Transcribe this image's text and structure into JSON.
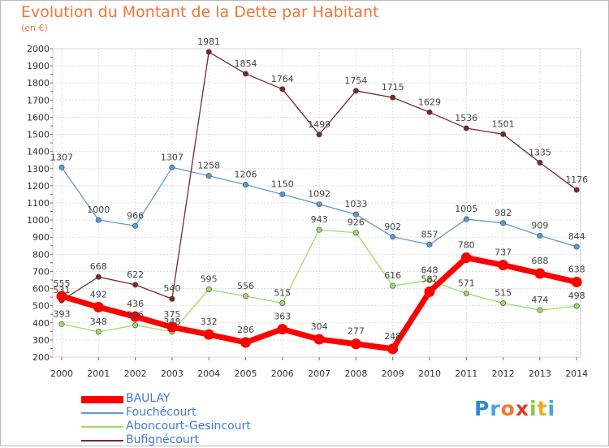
{
  "title": "Evolution du Montant de la Dette par Habitant",
  "subtitle": "(en €)",
  "logo": "Proxiti",
  "chart_data": {
    "type": "line",
    "title": "Evolution du Montant de la Dette par Habitant",
    "subtitle": "(en €)",
    "xlabel": "",
    "ylabel": "",
    "x": [
      "2000",
      "2001",
      "2002",
      "2003",
      "2004",
      "2005",
      "2006",
      "2007",
      "2008",
      "2009",
      "2010",
      "2011",
      "2012",
      "2013",
      "2014"
    ],
    "ylim": [
      200,
      2000
    ],
    "yticks": [
      200,
      300,
      400,
      500,
      600,
      700,
      800,
      900,
      1000,
      1100,
      1200,
      1300,
      1400,
      1500,
      1600,
      1700,
      1800,
      1900,
      2000
    ],
    "grid": true,
    "legend": "bottom-left",
    "series": [
      {
        "name": "BAULAY",
        "color": "#ff0000",
        "values": [
          555,
          492,
          436,
          375,
          332,
          286,
          363,
          304,
          277,
          248,
          582,
          780,
          737,
          688,
          638
        ],
        "labels": [
          "555",
          "492",
          "436",
          "375",
          "332",
          "286",
          "363",
          "304",
          "277",
          "248",
          "582",
          "780",
          "737",
          "688",
          "638"
        ]
      },
      {
        "name": "Fouchécourt",
        "color": "#5b9bd5",
        "values": [
          1307,
          1000,
          966,
          1307,
          1258,
          1206,
          1150,
          1092,
          1033,
          902,
          857,
          1005,
          982,
          909,
          844
        ],
        "labels": [
          "1307",
          "1000",
          "966",
          "1307",
          "1258",
          "1206",
          "1150",
          "1092",
          "1033",
          "902",
          "857",
          "1005",
          "982",
          "909",
          "844"
        ]
      },
      {
        "name": "Aboncourt-Gesincourt",
        "color": "#99dd66",
        "values": [
          393,
          348,
          386,
          348,
          595,
          556,
          515,
          943,
          926,
          616,
          648,
          571,
          515,
          474,
          498
        ],
        "labels": [
          "393",
          "348",
          "386",
          "348",
          "595",
          "556",
          "515",
          "943",
          "926",
          "616",
          "648",
          "571",
          "515",
          "474",
          "498"
        ]
      },
      {
        "name": "Bufignécourt",
        "color": "#7a2828",
        "values": [
          531,
          668,
          622,
          540,
          1981,
          1854,
          1764,
          1499,
          1754,
          1715,
          1629,
          1536,
          1501,
          1335,
          1176
        ],
        "labels": [
          "531",
          "668",
          "622",
          "540",
          "1981",
          "1854",
          "1764",
          "1499",
          "1754",
          "1715",
          "1629",
          "1536",
          "1501",
          "1335",
          "1176"
        ]
      }
    ]
  }
}
